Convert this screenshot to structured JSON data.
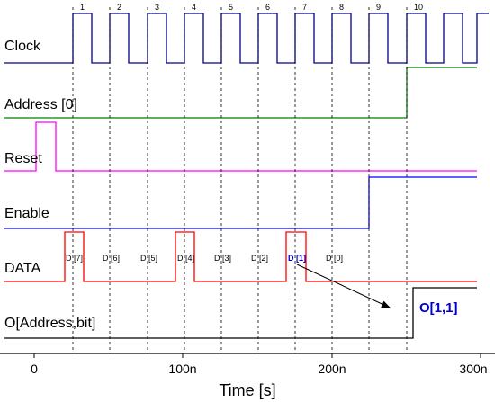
{
  "colors": {
    "clock": "#00008b",
    "address": "#008000",
    "reset": "#ff00ff",
    "enable": "#0000ff",
    "data": "#ff0000",
    "output": "#000000",
    "highlight": "#0000cc"
  },
  "signals": {
    "clock": "Clock",
    "address": "Address [0]",
    "reset": "Reset",
    "enable": "Enable",
    "data": "DATA",
    "output": "O[Address,bit]"
  },
  "clock_edges": [
    "1",
    "2",
    "3",
    "4",
    "5",
    "6",
    "7",
    "8",
    "9",
    "10"
  ],
  "data_labels": [
    {
      "text": "D [7]",
      "highlight": false
    },
    {
      "text": "D [6]",
      "highlight": false
    },
    {
      "text": "D [5]",
      "highlight": false
    },
    {
      "text": "D [4]",
      "highlight": false
    },
    {
      "text": "D [3]",
      "highlight": false
    },
    {
      "text": "D [2]",
      "highlight": false
    },
    {
      "text": "D [1]",
      "highlight": true
    },
    {
      "text": "D [0]",
      "highlight": false
    }
  ],
  "output_label": "O[1,1]",
  "axis": {
    "ticks": [
      "0",
      "100n",
      "200n",
      "300n"
    ],
    "title": "Time [s]"
  }
}
